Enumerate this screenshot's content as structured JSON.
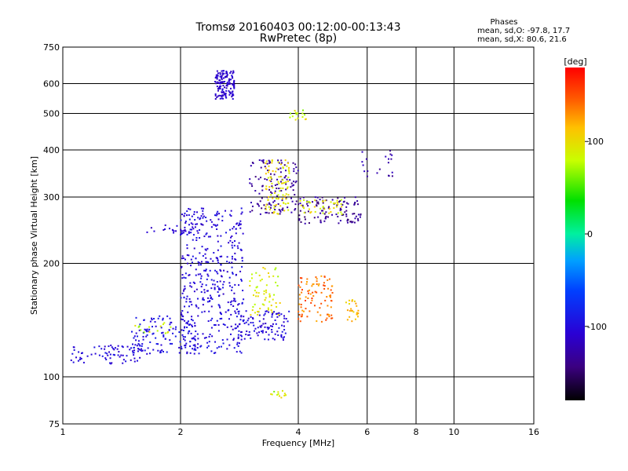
{
  "chart_data": {
    "type": "scatter",
    "title": "Tromsø 20160403 00:12:00-00:13:43",
    "subtitle": "RwPretec (8p)",
    "xlabel": "Frequency [MHz]",
    "ylabel": "Stationary phase Virtual Height [km]",
    "xscale": "log",
    "yscale": "log",
    "xlim": [
      1,
      16
    ],
    "ylim": [
      75,
      750
    ],
    "xticks": [
      1,
      2,
      4,
      6,
      8,
      10,
      16
    ],
    "xticks_minor_labels": [
      "1",
      "2",
      "4",
      "6",
      "8",
      "10",
      "16"
    ],
    "yticks": [
      75,
      100,
      200,
      300,
      400,
      500,
      600,
      750
    ],
    "grid": true,
    "phase_stats": {
      "heading": "Phases",
      "line1": "mean, sd,O: -97.8, 17.7",
      "line2": "mean, sd,X:  80.6, 21.6"
    },
    "colorbar": {
      "label": "[deg]",
      "range": [
        -180,
        180
      ],
      "ticks": [
        100,
        0,
        -100
      ],
      "tick_labels": [
        "100",
        "0",
        "-100"
      ]
    },
    "clusters": [
      {
        "freq": [
          2.45,
          2.75
        ],
        "height": [
          545,
          650
        ],
        "phase": [
          -120,
          -100
        ],
        "n": 140
      },
      {
        "freq": [
          1.05,
          1.6
        ],
        "height": [
          108,
          122
        ],
        "phase": [
          -115,
          -90
        ],
        "n": 80
      },
      {
        "freq": [
          1.5,
          2.2
        ],
        "height": [
          115,
          145
        ],
        "phase": [
          -110,
          -85
        ],
        "n": 120
      },
      {
        "freq": [
          2.0,
          2.9
        ],
        "height": [
          115,
          280
        ],
        "phase": [
          -115,
          -90
        ],
        "n": 420
      },
      {
        "freq": [
          2.8,
          3.8
        ],
        "height": [
          125,
          150
        ],
        "phase": [
          -115,
          -90
        ],
        "n": 110
      },
      {
        "freq": [
          3.0,
          4.0
        ],
        "height": [
          270,
          380
        ],
        "phase": [
          -145,
          -120
        ],
        "n": 130
      },
      {
        "freq": [
          4.0,
          5.8
        ],
        "height": [
          255,
          300
        ],
        "phase": [
          -150,
          -120
        ],
        "n": 110
      },
      {
        "freq": [
          3.3,
          3.8
        ],
        "height": [
          270,
          380
        ],
        "phase": [
          80,
          115
        ],
        "n": 90
      },
      {
        "freq": [
          3.0,
          3.6
        ],
        "height": [
          145,
          195
        ],
        "phase": [
          70,
          110
        ],
        "n": 60
      },
      {
        "freq": [
          4.0,
          4.9
        ],
        "height": [
          140,
          185
        ],
        "phase": [
          120,
          160
        ],
        "n": 90
      },
      {
        "freq": [
          4.0,
          5.2
        ],
        "height": [
          270,
          295
        ],
        "phase": [
          75,
          110
        ],
        "n": 40
      },
      {
        "freq": [
          5.3,
          5.7
        ],
        "height": [
          140,
          160
        ],
        "phase": [
          95,
          130
        ],
        "n": 25
      },
      {
        "freq": [
          1.5,
          1.9
        ],
        "height": [
          130,
          140
        ],
        "phase": [
          60,
          100
        ],
        "n": 15
      },
      {
        "freq": [
          1.6,
          2.3
        ],
        "height": [
          240,
          255
        ],
        "phase": [
          -120,
          -100
        ],
        "n": 30
      },
      {
        "freq": [
          3.4,
          3.75
        ],
        "height": [
          88,
          92
        ],
        "phase": [
          60,
          110
        ],
        "n": 12
      },
      {
        "freq": [
          3.8,
          4.2
        ],
        "height": [
          480,
          510
        ],
        "phase": [
          60,
          110
        ],
        "n": 15
      },
      {
        "freq": [
          5.7,
          7.0
        ],
        "height": [
          340,
          400
        ],
        "phase": [
          -140,
          -115
        ],
        "n": 20
      }
    ]
  }
}
